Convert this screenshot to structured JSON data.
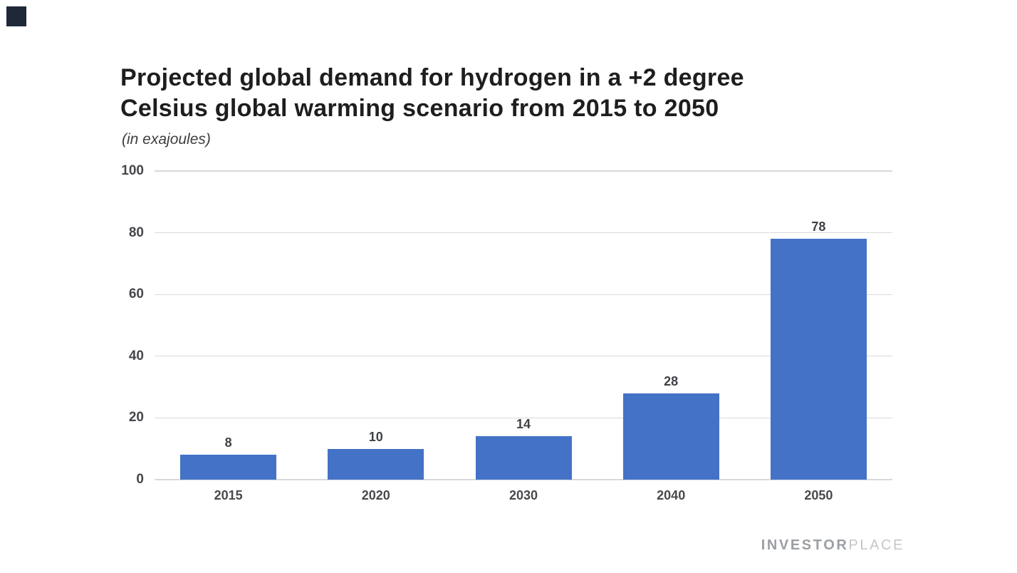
{
  "header": {
    "title_line1": "Projected global demand for hydrogen in a +2 degree",
    "title_line2": "Celsius global warming scenario from 2015 to 2050",
    "subtitle": "(in exajoules)"
  },
  "chart_data": {
    "type": "bar",
    "title": "Projected global demand for hydrogen in a +2 degree Celsius global warming scenario from 2015 to 2050",
    "subtitle": "(in exajoules)",
    "categories": [
      "2015",
      "2020",
      "2030",
      "2040",
      "2050"
    ],
    "values": [
      8,
      10,
      14,
      28,
      78
    ],
    "xlabel": "",
    "ylabel": "",
    "ylim": [
      0,
      100
    ],
    "yticks": [
      100,
      80,
      60,
      40,
      20,
      0
    ],
    "grid": true,
    "legend": "none",
    "bar_color": "#4472c7",
    "grid_color": "#d9d9db",
    "label_color": "#45474b"
  },
  "branding": {
    "logo_bold": "INVESTOR",
    "logo_light": "PLACE"
  },
  "colors": {
    "corner_square": "#1f2838",
    "title_text": "#1e1e1e"
  }
}
